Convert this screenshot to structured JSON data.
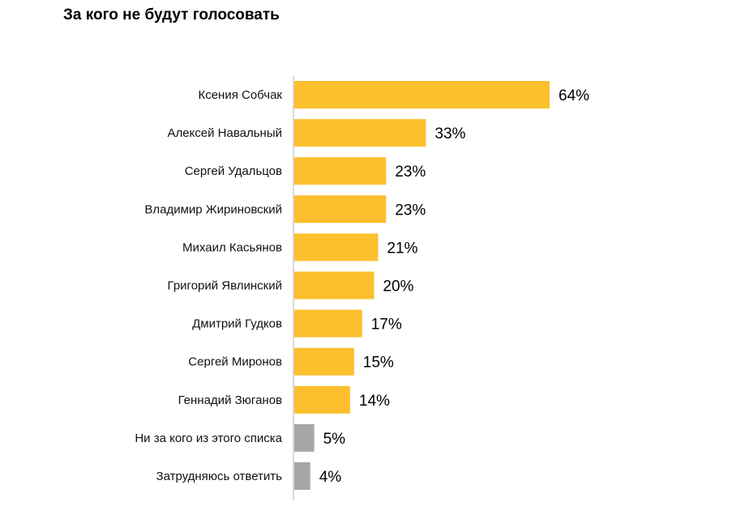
{
  "chart_data": {
    "type": "bar",
    "orientation": "horizontal",
    "title": "За кого не будут голосовать",
    "categories": [
      "Ксения Собчак",
      "Алексей Навальный",
      "Сергей Удальцов",
      "Владимир Жириновский",
      "Михаил Касьянов",
      "Григорий Явлинский",
      "Дмитрий Гудков",
      "Сергей Миронов",
      "Геннадий Зюганов",
      "Ни за кого из этого списка",
      "Затрудняюсь ответить"
    ],
    "values": [
      64,
      33,
      23,
      23,
      21,
      20,
      17,
      15,
      14,
      5,
      4
    ],
    "value_labels": [
      "64%",
      "33%",
      "23%",
      "23%",
      "21%",
      "20%",
      "17%",
      "15%",
      "14%",
      "5%",
      "4%"
    ],
    "bar_colors": [
      "#FDBF2D",
      "#FDBF2D",
      "#FDBF2D",
      "#FDBF2D",
      "#FDBF2D",
      "#FDBF2D",
      "#FDBF2D",
      "#FDBF2D",
      "#FDBF2D",
      "#A6A6A6",
      "#A6A6A6"
    ],
    "xlim": [
      0,
      64
    ],
    "grid": false,
    "legend": "none"
  }
}
